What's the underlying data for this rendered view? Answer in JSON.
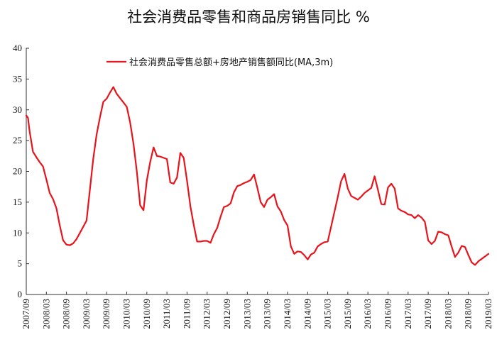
{
  "chart_data": {
    "type": "line",
    "title": "社会消费品零售和商品房销售同比 %",
    "xlabel": "",
    "ylabel": "",
    "ylim": [
      0,
      40
    ],
    "yticks": [
      "0",
      "5",
      "10",
      "15",
      "20",
      "25",
      "30",
      "35",
      "40"
    ],
    "xticks": [
      "2007/09",
      "2008/03",
      "2008/09",
      "2009/03",
      "2009/09",
      "2010/03",
      "2010/09",
      "2011/03",
      "2011/09",
      "2012/03",
      "2012/09",
      "2013/03",
      "2013/09",
      "2014/03",
      "2014/09",
      "2015/03",
      "2015/09",
      "2016/03",
      "2016/09",
      "2017/03",
      "2017/09",
      "2018/03",
      "2018/09",
      "2019/03"
    ],
    "legend_position": "top-left",
    "grid": false,
    "color": "#e8141c",
    "series": [
      {
        "name": "社会消费品零售总额+房地产销售额同比(MA,3m)",
        "x": [
          0,
          0.5,
          1,
          2,
          3,
          4,
          5,
          6,
          7,
          8,
          9,
          10,
          11,
          12,
          13,
          14,
          15,
          16,
          17,
          18,
          19,
          20,
          21,
          22,
          23,
          24,
          25,
          26,
          27,
          28,
          29,
          30,
          31,
          32,
          33,
          34,
          35,
          36,
          37,
          38,
          39,
          40,
          41,
          42,
          43,
          44,
          45,
          46,
          47,
          48,
          49,
          50,
          51,
          52,
          53,
          54,
          55,
          56,
          57,
          58,
          59,
          60,
          61,
          62,
          63,
          64,
          65,
          66,
          67,
          68,
          69,
          70,
          71,
          72,
          73,
          74,
          75,
          76,
          77,
          78,
          79,
          80,
          81,
          82,
          83,
          84,
          85,
          86,
          87,
          88,
          89,
          90,
          91,
          92,
          93,
          94,
          95,
          96,
          97,
          98,
          99,
          100,
          101,
          102,
          103,
          104,
          105,
          106,
          107,
          108,
          109,
          110,
          111,
          112,
          113,
          114,
          115,
          116,
          117,
          118,
          119,
          120,
          121,
          122,
          123,
          124,
          125,
          126,
          127,
          128,
          129,
          130,
          131,
          132,
          133,
          134,
          135,
          136,
          137,
          138
        ],
        "values": [
          29.1,
          28.7,
          26.5,
          23.2,
          22.3,
          21.5,
          20.8,
          18.7,
          16.5,
          15.5,
          14.0,
          11.2,
          8.8,
          8.1,
          8.0,
          8.3,
          9.0,
          10.0,
          11.0,
          12.0,
          17.0,
          22.0,
          26.0,
          28.8,
          31.3,
          31.8,
          32.8,
          33.7,
          32.6,
          31.9,
          31.2,
          30.5,
          28.0,
          24.5,
          20.0,
          14.5,
          13.7,
          18.5,
          21.5,
          23.9,
          22.5,
          22.4,
          22.2,
          22.0,
          18.2,
          18.0,
          19.0,
          23.0,
          22.2,
          18.5,
          14.3,
          11.3,
          8.6,
          8.6,
          8.7,
          8.7,
          8.4,
          9.8,
          10.8,
          12.6,
          14.2,
          14.4,
          14.8,
          16.6,
          17.6,
          17.8,
          18.1,
          18.3,
          18.6,
          19.5,
          17.3,
          15.0,
          14.2,
          15.4,
          15.8,
          16.3,
          14.3,
          13.5,
          12.1,
          11.2,
          7.8,
          6.6,
          7.0,
          6.9,
          6.4,
          5.7,
          6.5,
          6.8,
          7.8,
          8.2,
          8.5,
          8.6,
          11.0,
          13.4,
          15.8,
          18.4,
          19.6,
          17.2,
          16.0,
          15.7,
          15.4,
          15.9,
          16.5,
          16.9,
          17.3,
          19.2,
          17.0,
          14.7,
          14.6,
          17.4,
          18.0,
          17.2,
          14.0,
          13.6,
          13.4,
          13.0,
          12.9,
          12.4,
          12.9,
          12.5,
          11.8,
          8.8,
          8.2,
          8.7,
          10.2,
          10.1,
          9.8,
          9.6,
          7.8,
          6.1,
          6.8,
          7.9,
          7.7,
          6.4,
          5.2,
          4.8,
          5.4,
          5.8,
          6.2,
          6.6
        ]
      }
    ]
  }
}
